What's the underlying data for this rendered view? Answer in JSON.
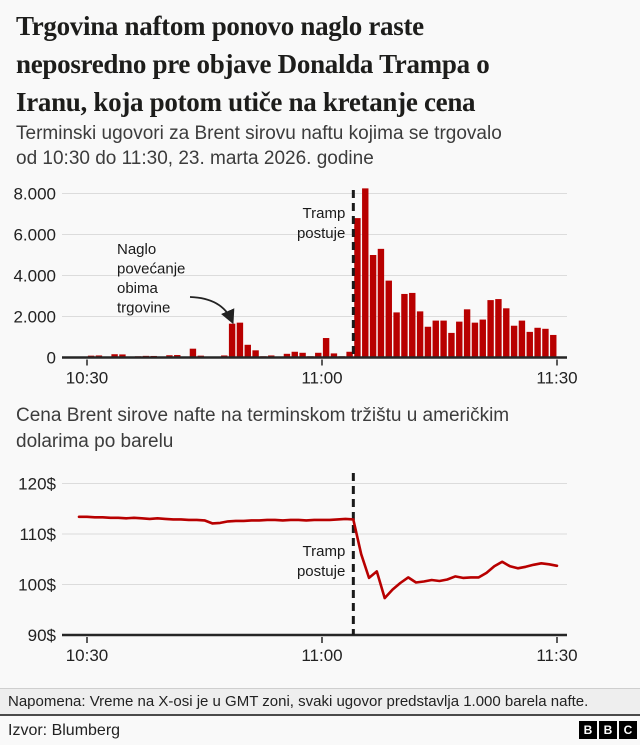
{
  "header": {
    "title_lines": [
      "Trgovina naftom ponovo naglo raste",
      "neposredno pre objave Donalda Trampa o",
      "Iranu, koja potom utiče na kretanje cena"
    ],
    "subtitle_lines": [
      "Terminski ugovori za Brent sirovu naftu kojima se trgovalo",
      "od 10:30 do 11:30, 23. marta 2026. godine"
    ]
  },
  "chart2_title_lines": [
    "Cena Brent sirove nafte na terminskom tržištu u američkim",
    "dolarima po barelu"
  ],
  "footer": {
    "note": "Napomena: Vreme na X-osi je u GMT zoni, svaki ugovor predstavlja 1.000 barela nafte.",
    "source": "Izvor: Blumberg",
    "bbc_letters": [
      "B",
      "B",
      "C"
    ]
  },
  "colors": {
    "accent_red": "#b80000",
    "background": "#f9f9f9",
    "grid": "#dcdcdc",
    "axis": "#262626",
    "event_line": "#1a1a1a"
  },
  "chart_data": [
    {
      "type": "bar",
      "title": "Terminski ugovori za Brent sirovu naftu kojima se trgovalo od 10:30 do 11:30, 23. marta 2026. godine",
      "x_start": "10:30",
      "x_interval_minutes": 1,
      "x_ticks": [
        "10:30",
        "11:00",
        "11:30"
      ],
      "x_tick_minutes": [
        0,
        30,
        60
      ],
      "y_ticks": [
        "0",
        "2.000",
        "4.000",
        "6.000",
        "8.000"
      ],
      "y_tick_values": [
        0,
        2000,
        4000,
        6000,
        8000
      ],
      "ylim": [
        0,
        8600
      ],
      "bar_color": "#b80000",
      "event_minute": 34,
      "values": [
        90,
        100,
        0,
        160,
        150,
        0,
        60,
        80,
        75,
        0,
        110,
        120,
        0,
        430,
        90,
        0,
        0,
        100,
        1650,
        1700,
        620,
        350,
        60,
        100,
        0,
        180,
        280,
        230,
        60,
        230,
        950,
        200,
        60,
        280,
        6800,
        8250,
        5000,
        5300,
        3750,
        2200,
        3100,
        3150,
        2250,
        1500,
        1800,
        1800,
        1200,
        1750,
        2350,
        1700,
        1850,
        2800,
        2850,
        2400,
        1550,
        1800,
        1250,
        1450,
        1400,
        1100
      ],
      "annotations": {
        "spike_lines": [
          "Naglo",
          "povećanje",
          "obima",
          "trgovine"
        ],
        "event_lines": [
          "Tramp",
          "postuje"
        ]
      }
    },
    {
      "type": "line",
      "title": "Cena Brent sirove nafte na terminskom tržištu u američkim dolarima po barelu",
      "x_start": "10:30",
      "x_interval_minutes": 1,
      "x_ticks": [
        "10:30",
        "11:00",
        "11:30"
      ],
      "x_tick_minutes": [
        0,
        30,
        60
      ],
      "y_ticks": [
        "90$",
        "100$",
        "110$",
        "120$"
      ],
      "y_tick_values": [
        90,
        100,
        110,
        120
      ],
      "ylim": [
        90,
        122
      ],
      "line_color": "#b80000",
      "event_minute": 34,
      "values": [
        113.4,
        113.3,
        113.3,
        113.2,
        113.2,
        113.1,
        113.2,
        113.1,
        113.0,
        113.1,
        113.0,
        112.9,
        112.9,
        112.8,
        112.8,
        112.7,
        112.1,
        112.2,
        112.5,
        112.6,
        112.6,
        112.7,
        112.7,
        112.8,
        112.8,
        112.7,
        112.8,
        112.8,
        112.7,
        112.8,
        112.8,
        112.8,
        112.9,
        113.0,
        112.9,
        106.0,
        101.3,
        102.6,
        97.3,
        99.0,
        100.3,
        101.4,
        100.4,
        100.6,
        100.9,
        100.7,
        101.0,
        101.6,
        101.3,
        101.4,
        101.4,
        102.3,
        103.6,
        104.5,
        103.6,
        103.2,
        103.5,
        103.9,
        104.2,
        104.0,
        103.7
      ],
      "annotations": {
        "event_lines": [
          "Tramp",
          "postuje"
        ]
      }
    }
  ]
}
